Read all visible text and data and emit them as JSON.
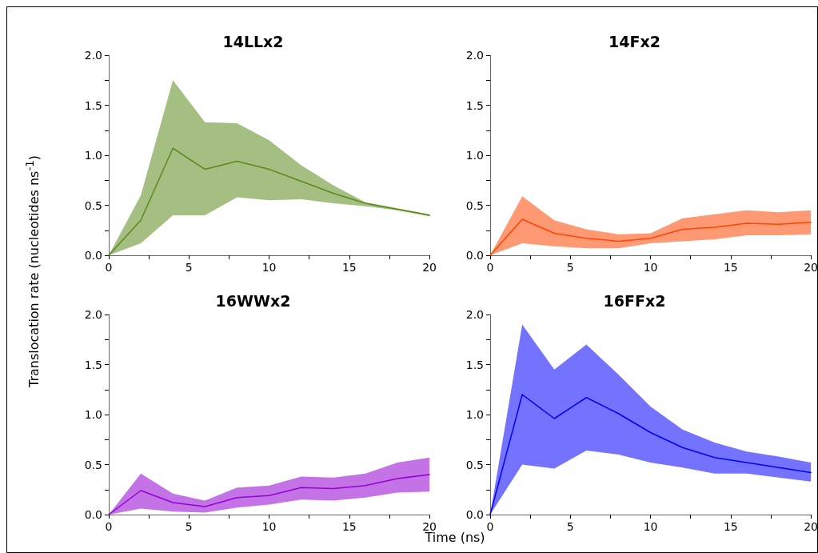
{
  "chart_data": [
    {
      "type": "line",
      "title": "14LLx2",
      "ylabel": "Translocation rate (nucleotides ns$^{-1}$)",
      "x": [
        0,
        2,
        4,
        6,
        8,
        10,
        12,
        14,
        16,
        18,
        20
      ],
      "xlim": [
        0,
        20
      ],
      "xticks": [
        0,
        {
          "value": 2.5,
          "label": null
        },
        5,
        {
          "value": 7.5,
          "label": null
        },
        10,
        {
          "value": 12.5,
          "label": null
        },
        15,
        {
          "value": 17.5,
          "label": null
        },
        20
      ],
      "ylim": [
        0,
        2
      ],
      "yticks": [
        {
          "value": 0,
          "label": "0.0"
        },
        {
          "value": 0.25,
          "label": null
        },
        {
          "value": 0.5,
          "label": "0.5"
        },
        {
          "value": 0.75,
          "label": null
        },
        {
          "value": 1,
          "label": "1.0"
        },
        {
          "value": 1.25,
          "label": null
        },
        {
          "value": 1.5,
          "label": "1.5"
        },
        {
          "value": 1.75,
          "label": null
        },
        {
          "value": 2,
          "label": "2.0"
        }
      ],
      "grid": false,
      "marker": "none",
      "line_style": "solid",
      "series": [
        {
          "color": "#5a8a1a",
          "values": [
            0,
            0.35,
            1.07,
            0.86,
            0.94,
            0.86,
            0.74,
            0.62,
            0.52,
            0.46,
            0.4
          ],
          "upper": [
            0,
            0.6,
            1.75,
            1.33,
            1.32,
            1.15,
            0.9,
            0.7,
            0.53,
            0.47,
            0.41
          ],
          "lower": [
            0,
            0.12,
            0.4,
            0.4,
            0.58,
            0.55,
            0.56,
            0.52,
            0.49,
            0.45,
            0.39
          ]
        }
      ]
    },
    {
      "type": "line",
      "title": "14Fx2",
      "x": [
        0,
        2,
        4,
        6,
        8,
        10,
        12,
        14,
        16,
        18,
        20
      ],
      "xlim": [
        0,
        20
      ],
      "xticks": [
        0,
        {
          "value": 2.5,
          "label": null
        },
        5,
        {
          "value": 7.5,
          "label": null
        },
        10,
        {
          "value": 12.5,
          "label": null
        },
        15,
        {
          "value": 17.5,
          "label": null
        },
        20
      ],
      "ylim": [
        0,
        2
      ],
      "yticks": [
        {
          "value": 0,
          "label": "0.0"
        },
        {
          "value": 0.25,
          "label": null
        },
        {
          "value": 0.5,
          "label": "0.5"
        },
        {
          "value": 0.75,
          "label": null
        },
        {
          "value": 1,
          "label": "1.0"
        },
        {
          "value": 1.25,
          "label": null
        },
        {
          "value": 1.5,
          "label": "1.5"
        },
        {
          "value": 1.75,
          "label": null
        },
        {
          "value": 2,
          "label": "2.0"
        }
      ],
      "grid": false,
      "marker": "none",
      "line_style": "solid",
      "series": [
        {
          "color": "#ff4500",
          "values": [
            0,
            0.36,
            0.22,
            0.17,
            0.14,
            0.17,
            0.26,
            0.28,
            0.32,
            0.31,
            0.33
          ],
          "upper": [
            0,
            0.59,
            0.35,
            0.26,
            0.21,
            0.22,
            0.37,
            0.41,
            0.45,
            0.43,
            0.45
          ],
          "lower": [
            0,
            0.12,
            0.09,
            0.07,
            0.07,
            0.12,
            0.14,
            0.16,
            0.2,
            0.2,
            0.21
          ]
        }
      ]
    },
    {
      "type": "line",
      "title": "16WWx2",
      "xlabel": "Time (ns)",
      "x": [
        0,
        2,
        4,
        6,
        8,
        10,
        12,
        14,
        16,
        18,
        20
      ],
      "xlim": [
        0,
        20
      ],
      "xticks": [
        0,
        {
          "value": 2.5,
          "label": null
        },
        5,
        {
          "value": 7.5,
          "label": null
        },
        10,
        {
          "value": 12.5,
          "label": null
        },
        15,
        {
          "value": 17.5,
          "label": null
        },
        20
      ],
      "ylim": [
        0,
        2
      ],
      "yticks": [
        {
          "value": 0,
          "label": "0.0"
        },
        {
          "value": 0.25,
          "label": null
        },
        {
          "value": 0.5,
          "label": "0.5"
        },
        {
          "value": 0.75,
          "label": null
        },
        {
          "value": 1,
          "label": "1.0"
        },
        {
          "value": 1.25,
          "label": null
        },
        {
          "value": 1.5,
          "label": "1.5"
        },
        {
          "value": 1.75,
          "label": null
        },
        {
          "value": 2,
          "label": "2.0"
        }
      ],
      "grid": false,
      "marker": "none",
      "line_style": "solid",
      "series": [
        {
          "color": "#9400d3",
          "values": [
            0,
            0.24,
            0.12,
            0.08,
            0.17,
            0.19,
            0.27,
            0.26,
            0.29,
            0.36,
            0.4
          ],
          "upper": [
            0,
            0.41,
            0.21,
            0.14,
            0.27,
            0.29,
            0.38,
            0.37,
            0.41,
            0.52,
            0.57
          ],
          "lower": [
            0,
            0.06,
            0.03,
            0.02,
            0.07,
            0.1,
            0.15,
            0.14,
            0.17,
            0.22,
            0.23
          ]
        }
      ]
    },
    {
      "type": "line",
      "title": "16FFx2",
      "x": [
        0,
        2,
        4,
        6,
        8,
        10,
        12,
        14,
        16,
        18,
        20
      ],
      "xlim": [
        0,
        20
      ],
      "xticks": [
        0,
        {
          "value": 2.5,
          "label": null
        },
        5,
        {
          "value": 7.5,
          "label": null
        },
        10,
        {
          "value": 12.5,
          "label": null
        },
        15,
        {
          "value": 17.5,
          "label": null
        },
        20
      ],
      "ylim": [
        0,
        2
      ],
      "yticks": [
        {
          "value": 0,
          "label": "0.0"
        },
        {
          "value": 0.25,
          "label": null
        },
        {
          "value": 0.5,
          "label": "0.5"
        },
        {
          "value": 0.75,
          "label": null
        },
        {
          "value": 1,
          "label": "1.0"
        },
        {
          "value": 1.25,
          "label": null
        },
        {
          "value": 1.5,
          "label": "1.5"
        },
        {
          "value": 1.75,
          "label": null
        },
        {
          "value": 2,
          "label": "2.0"
        }
      ],
      "grid": false,
      "marker": "none",
      "line_style": "solid",
      "series": [
        {
          "color": "#0000ff",
          "values": [
            0,
            1.2,
            0.96,
            1.17,
            1.01,
            0.82,
            0.67,
            0.57,
            0.52,
            0.47,
            0.42
          ],
          "upper": [
            0,
            1.9,
            1.45,
            1.7,
            1.4,
            1.08,
            0.85,
            0.72,
            0.63,
            0.58,
            0.52
          ],
          "lower": [
            0,
            0.5,
            0.46,
            0.64,
            0.6,
            0.52,
            0.47,
            0.41,
            0.41,
            0.37,
            0.33
          ]
        }
      ]
    }
  ]
}
